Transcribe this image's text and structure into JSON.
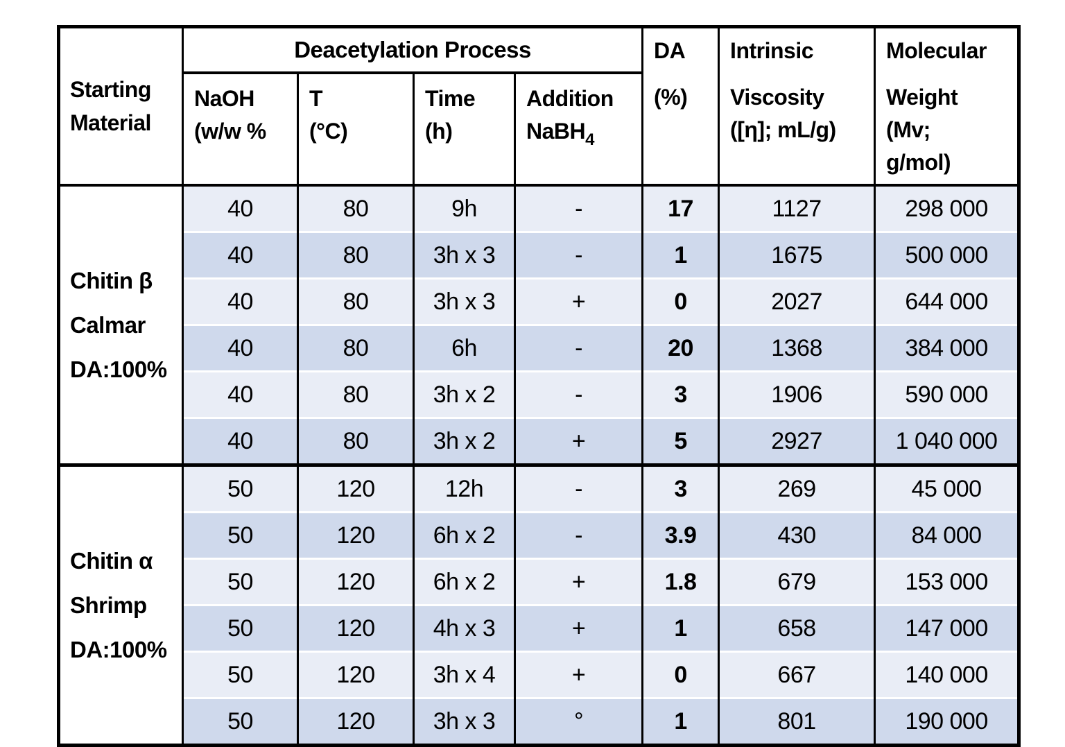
{
  "colors": {
    "page_background": "#ffffff",
    "row_light": "#e9edf6",
    "row_dark": "#cfd9ec",
    "line": "#000000",
    "text": "#000000"
  },
  "table": {
    "header": {
      "starting_material": "Starting\nMaterial",
      "deacetylation_process": "Deacetylation Process",
      "naoh": "NaOH\n(w/w %",
      "temperature": "T\n(°C)",
      "time": "Time\n(h)",
      "addition_line1": "Addition",
      "addition_formula": "NaBH",
      "addition_subscript": "4",
      "da_top": "DA",
      "da_bottom": "(%)",
      "viscosity_top": "Intrinsic",
      "viscosity_bottom": "Viscosity\n([η]; mL/g)",
      "mw_top": "Molecular",
      "mw_bottom": "Weight\n(Mv;\ng/mol)"
    },
    "column_keys": [
      "naoh",
      "t",
      "time",
      "addition",
      "da",
      "viscosity",
      "mw"
    ],
    "groups": [
      {
        "label": "Chitin β\nCalmar\nDA:100%",
        "rows": [
          {
            "naoh": "40",
            "t": "80",
            "time": "9h",
            "addition": "-",
            "da": "17",
            "viscosity": "1127",
            "mw": "298 000"
          },
          {
            "naoh": "40",
            "t": "80",
            "time": "3h x 3",
            "addition": "-",
            "da": "1",
            "viscosity": "1675",
            "mw": "500 000"
          },
          {
            "naoh": "40",
            "t": "80",
            "time": "3h x 3",
            "addition": "+",
            "da": "0",
            "viscosity": "2027",
            "mw": "644 000"
          },
          {
            "naoh": "40",
            "t": "80",
            "time": "6h",
            "addition": "-",
            "da": "20",
            "viscosity": "1368",
            "mw": "384 000"
          },
          {
            "naoh": "40",
            "t": "80",
            "time": "3h x 2",
            "addition": "-",
            "da": "3",
            "viscosity": "1906",
            "mw": "590 000"
          },
          {
            "naoh": "40",
            "t": "80",
            "time": "3h x 2",
            "addition": "+",
            "da": "5",
            "viscosity": "2927",
            "mw": "1 040 000"
          }
        ]
      },
      {
        "label": "Chitin α\nShrimp\nDA:100%",
        "rows": [
          {
            "naoh": "50",
            "t": "120",
            "time": "12h",
            "addition": "-",
            "da": "3",
            "viscosity": "269",
            "mw": "45 000"
          },
          {
            "naoh": "50",
            "t": "120",
            "time": "6h x 2",
            "addition": "-",
            "da": "3.9",
            "viscosity": "430",
            "mw": "84 000"
          },
          {
            "naoh": "50",
            "t": "120",
            "time": "6h x 2",
            "addition": "+",
            "da": "1.8",
            "viscosity": "679",
            "mw": "153 000"
          },
          {
            "naoh": "50",
            "t": "120",
            "time": "4h x 3",
            "addition": "+",
            "da": "1",
            "viscosity": "658",
            "mw": "147 000"
          },
          {
            "naoh": "50",
            "t": "120",
            "time": "3h x 4",
            "addition": "+",
            "da": "0",
            "viscosity": "667",
            "mw": "140 000"
          },
          {
            "naoh": "50",
            "t": "120",
            "time": "3h x 3",
            "addition": "°",
            "da": "1",
            "viscosity": "801",
            "mw": "190 000"
          }
        ]
      }
    ]
  }
}
